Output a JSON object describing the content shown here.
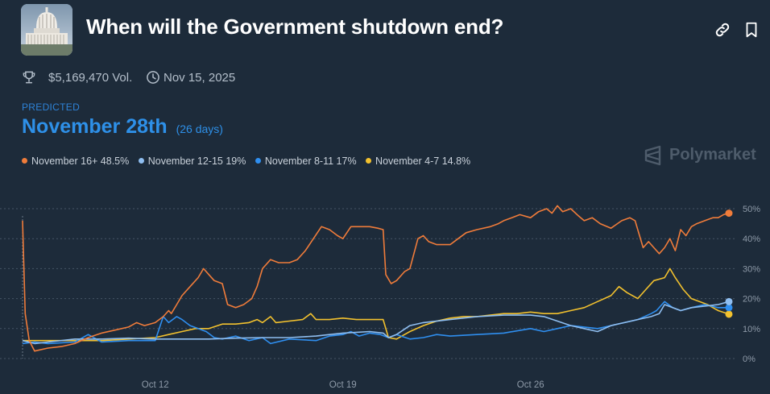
{
  "market": {
    "title": "When will the Government shutdown end?",
    "volume": "$5,169,470 Vol.",
    "end_date": "Nov 15, 2025",
    "predicted_label": "PREDICTED",
    "predicted_value": "November 28th",
    "predicted_sub": "(26 days)",
    "brand": "Polymarket",
    "thumbnail_icon": "capitol-building-image"
  },
  "icons": {
    "link": "link-icon",
    "bookmark": "bookmark-icon",
    "trophy": "trophy-icon",
    "clock": "clock-icon",
    "brand": "polymarket-logo-icon"
  },
  "colors": {
    "background": "#1d2b3a",
    "accent": "#2e90e8",
    "nov16": "#f07c3a",
    "nov12": "#8fbef0",
    "nov8": "#2f8ff0",
    "nov4": "#f2c12e",
    "grid": "#465566"
  },
  "legend": [
    {
      "label": "November 16+ 48.5%",
      "color": "#f07c3a"
    },
    {
      "label": "November 12-15 19%",
      "color": "#8fbef0"
    },
    {
      "label": "November 8-11 17%",
      "color": "#2f8ff0"
    },
    {
      "label": "November 4-7 14.8%",
      "color": "#f2c12e"
    }
  ],
  "chart_data": {
    "type": "line",
    "title": "When will the Government shutdown end?",
    "xlabel": "",
    "ylabel": "",
    "x_ticks": [
      "Oct 12",
      "Oct 19",
      "Oct 26"
    ],
    "x_tick_values": [
      12,
      19,
      26
    ],
    "x_range": [
      7.05,
      33.4
    ],
    "y_ticks": [
      "50%",
      "40%",
      "30%",
      "20%",
      "10%",
      "0%"
    ],
    "y_tick_values": [
      50,
      40,
      30,
      20,
      10,
      0
    ],
    "ylim": [
      0,
      50
    ],
    "grid": "horizontal-dashed",
    "series": [
      {
        "name": "November 16+",
        "color": "#f07c3a",
        "last": 48.5,
        "points": [
          [
            7.05,
            46
          ],
          [
            7.15,
            15
          ],
          [
            7.3,
            6
          ],
          [
            7.5,
            2.5
          ],
          [
            8,
            3.5
          ],
          [
            8.5,
            4
          ],
          [
            9,
            5
          ],
          [
            9.5,
            7
          ],
          [
            10,
            8.5
          ],
          [
            10.5,
            9.5
          ],
          [
            11,
            10.5
          ],
          [
            11.3,
            12
          ],
          [
            11.6,
            11
          ],
          [
            12,
            12
          ],
          [
            12.3,
            14
          ],
          [
            12.5,
            16
          ],
          [
            12.6,
            15
          ],
          [
            12.8,
            18
          ],
          [
            13,
            21
          ],
          [
            13.3,
            24
          ],
          [
            13.6,
            27
          ],
          [
            13.8,
            30
          ],
          [
            14,
            28
          ],
          [
            14.2,
            26
          ],
          [
            14.5,
            25
          ],
          [
            14.7,
            18
          ],
          [
            15,
            17
          ],
          [
            15.3,
            18
          ],
          [
            15.6,
            20
          ],
          [
            15.8,
            24
          ],
          [
            16,
            30
          ],
          [
            16.3,
            33
          ],
          [
            16.6,
            32
          ],
          [
            17,
            32
          ],
          [
            17.3,
            33
          ],
          [
            17.6,
            36
          ],
          [
            17.9,
            40
          ],
          [
            18.2,
            44
          ],
          [
            18.5,
            43
          ],
          [
            18.8,
            41
          ],
          [
            19,
            40
          ],
          [
            19.3,
            44
          ],
          [
            19.6,
            44
          ],
          [
            20,
            44
          ],
          [
            20.3,
            43.5
          ],
          [
            20.5,
            43
          ],
          [
            20.6,
            28
          ],
          [
            20.8,
            25
          ],
          [
            21,
            26
          ],
          [
            21.3,
            29
          ],
          [
            21.5,
            30
          ],
          [
            21.8,
            40
          ],
          [
            22,
            41
          ],
          [
            22.2,
            39
          ],
          [
            22.5,
            38
          ],
          [
            23,
            38
          ],
          [
            23.3,
            40
          ],
          [
            23.6,
            42
          ],
          [
            24,
            43
          ],
          [
            24.5,
            44
          ],
          [
            24.8,
            45
          ],
          [
            25,
            46
          ],
          [
            25.3,
            47
          ],
          [
            25.6,
            48
          ],
          [
            26,
            47
          ],
          [
            26.3,
            49
          ],
          [
            26.6,
            50
          ],
          [
            26.8,
            48.5
          ],
          [
            27,
            51
          ],
          [
            27.2,
            49
          ],
          [
            27.5,
            50
          ],
          [
            27.8,
            47.5
          ],
          [
            28,
            46
          ],
          [
            28.3,
            47
          ],
          [
            28.6,
            45
          ],
          [
            29,
            43.5
          ],
          [
            29.4,
            46
          ],
          [
            29.7,
            47
          ],
          [
            29.9,
            46
          ],
          [
            30,
            43
          ],
          [
            30.2,
            37
          ],
          [
            30.4,
            39
          ],
          [
            30.6,
            37
          ],
          [
            30.8,
            35
          ],
          [
            31,
            37
          ],
          [
            31.2,
            40
          ],
          [
            31.4,
            36
          ],
          [
            31.6,
            43
          ],
          [
            31.8,
            41
          ],
          [
            32,
            44
          ],
          [
            32.2,
            45
          ],
          [
            32.5,
            46
          ],
          [
            32.8,
            47
          ],
          [
            33,
            47
          ],
          [
            33.2,
            48
          ],
          [
            33.4,
            48.5
          ]
        ]
      },
      {
        "name": "November 12-15",
        "color": "#8fbef0",
        "last": 19,
        "points": [
          [
            7.05,
            6
          ],
          [
            7.5,
            5
          ],
          [
            8,
            5.5
          ],
          [
            9,
            6.5
          ],
          [
            10,
            6.5
          ],
          [
            11,
            6.8
          ],
          [
            12,
            6.5
          ],
          [
            13,
            6.5
          ],
          [
            14,
            6.5
          ],
          [
            15,
            6.8
          ],
          [
            16,
            7
          ],
          [
            17,
            7
          ],
          [
            18,
            7.5
          ],
          [
            19,
            8.5
          ],
          [
            20,
            9
          ],
          [
            20.5,
            8.5
          ],
          [
            20.7,
            7
          ],
          [
            21,
            8
          ],
          [
            21.5,
            11
          ],
          [
            22,
            12
          ],
          [
            23,
            13
          ],
          [
            24,
            14
          ],
          [
            25,
            14.5
          ],
          [
            26,
            14.5
          ],
          [
            26.5,
            14
          ],
          [
            27,
            12.5
          ],
          [
            27.5,
            11
          ],
          [
            28,
            10
          ],
          [
            28.5,
            9
          ],
          [
            29,
            11
          ],
          [
            29.5,
            12
          ],
          [
            30,
            13
          ],
          [
            30.5,
            14
          ],
          [
            30.8,
            15
          ],
          [
            31,
            18
          ],
          [
            31.3,
            17
          ],
          [
            31.6,
            16
          ],
          [
            32,
            17
          ],
          [
            32.5,
            17.5
          ],
          [
            33,
            18
          ],
          [
            33.4,
            19
          ]
        ]
      },
      {
        "name": "November 8-11",
        "color": "#2f8ff0",
        "last": 17,
        "points": [
          [
            7.05,
            5
          ],
          [
            7.5,
            5.5
          ],
          [
            8,
            5
          ],
          [
            9,
            5.5
          ],
          [
            9.5,
            8
          ],
          [
            10,
            5.5
          ],
          [
            11,
            6
          ],
          [
            12,
            6
          ],
          [
            12.3,
            14
          ],
          [
            12.5,
            12
          ],
          [
            12.8,
            14
          ],
          [
            13,
            13
          ],
          [
            13.3,
            11
          ],
          [
            13.6,
            10
          ],
          [
            13.9,
            9
          ],
          [
            14.2,
            7
          ],
          [
            14.5,
            6.5
          ],
          [
            15,
            7.5
          ],
          [
            15.5,
            6
          ],
          [
            16,
            7
          ],
          [
            16.3,
            5
          ],
          [
            17,
            6.5
          ],
          [
            18,
            6
          ],
          [
            18.5,
            7.5
          ],
          [
            19,
            8
          ],
          [
            19.3,
            9
          ],
          [
            19.6,
            7.5
          ],
          [
            20,
            8.5
          ],
          [
            20.4,
            8
          ],
          [
            20.7,
            7
          ],
          [
            21,
            8
          ],
          [
            21.5,
            6.5
          ],
          [
            22,
            7
          ],
          [
            22.5,
            8
          ],
          [
            23,
            7.5
          ],
          [
            24,
            8
          ],
          [
            25,
            8.5
          ],
          [
            26,
            10
          ],
          [
            26.5,
            9
          ],
          [
            27,
            10
          ],
          [
            27.5,
            11
          ],
          [
            28,
            10.5
          ],
          [
            28.5,
            10
          ],
          [
            29,
            11
          ],
          [
            29.5,
            12
          ],
          [
            30,
            13
          ],
          [
            30.5,
            15
          ],
          [
            30.7,
            16
          ],
          [
            31,
            19
          ],
          [
            31.3,
            17
          ],
          [
            31.6,
            16
          ],
          [
            32,
            17
          ],
          [
            32.5,
            18
          ],
          [
            33,
            17
          ],
          [
            33.4,
            17
          ]
        ]
      },
      {
        "name": "November 4-7",
        "color": "#f2c12e",
        "last": 14.8,
        "points": [
          [
            7.05,
            6
          ],
          [
            7.5,
            6
          ],
          [
            8,
            6
          ],
          [
            9,
            6
          ],
          [
            10,
            6
          ],
          [
            11,
            6.5
          ],
          [
            12,
            7
          ],
          [
            12.5,
            8
          ],
          [
            13,
            9
          ],
          [
            13.5,
            10
          ],
          [
            14,
            10
          ],
          [
            14.5,
            11.5
          ],
          [
            15,
            11.5
          ],
          [
            15.5,
            12
          ],
          [
            15.8,
            13
          ],
          [
            16,
            12
          ],
          [
            16.3,
            14
          ],
          [
            16.5,
            12
          ],
          [
            17,
            12.5
          ],
          [
            17.5,
            13
          ],
          [
            17.8,
            15
          ],
          [
            18,
            13
          ],
          [
            18.5,
            13
          ],
          [
            19,
            13.5
          ],
          [
            19.5,
            13
          ],
          [
            20,
            13
          ],
          [
            20.5,
            13
          ],
          [
            20.7,
            7
          ],
          [
            21,
            6.5
          ],
          [
            21.5,
            9
          ],
          [
            22,
            11
          ],
          [
            22.5,
            12.5
          ],
          [
            23,
            13.5
          ],
          [
            23.5,
            14
          ],
          [
            24,
            14
          ],
          [
            24.5,
            14.5
          ],
          [
            25,
            15
          ],
          [
            25.5,
            15
          ],
          [
            26,
            15.5
          ],
          [
            26.5,
            15
          ],
          [
            27,
            15
          ],
          [
            27.5,
            16
          ],
          [
            28,
            17
          ],
          [
            28.5,
            19
          ],
          [
            29,
            21
          ],
          [
            29.3,
            24
          ],
          [
            29.6,
            22
          ],
          [
            30,
            20
          ],
          [
            30.3,
            23
          ],
          [
            30.6,
            26
          ],
          [
            31,
            27
          ],
          [
            31.2,
            30
          ],
          [
            31.4,
            27
          ],
          [
            31.7,
            23
          ],
          [
            32,
            20
          ],
          [
            32.3,
            19
          ],
          [
            32.6,
            18
          ],
          [
            33,
            16
          ],
          [
            33.4,
            14.8
          ]
        ]
      }
    ]
  }
}
